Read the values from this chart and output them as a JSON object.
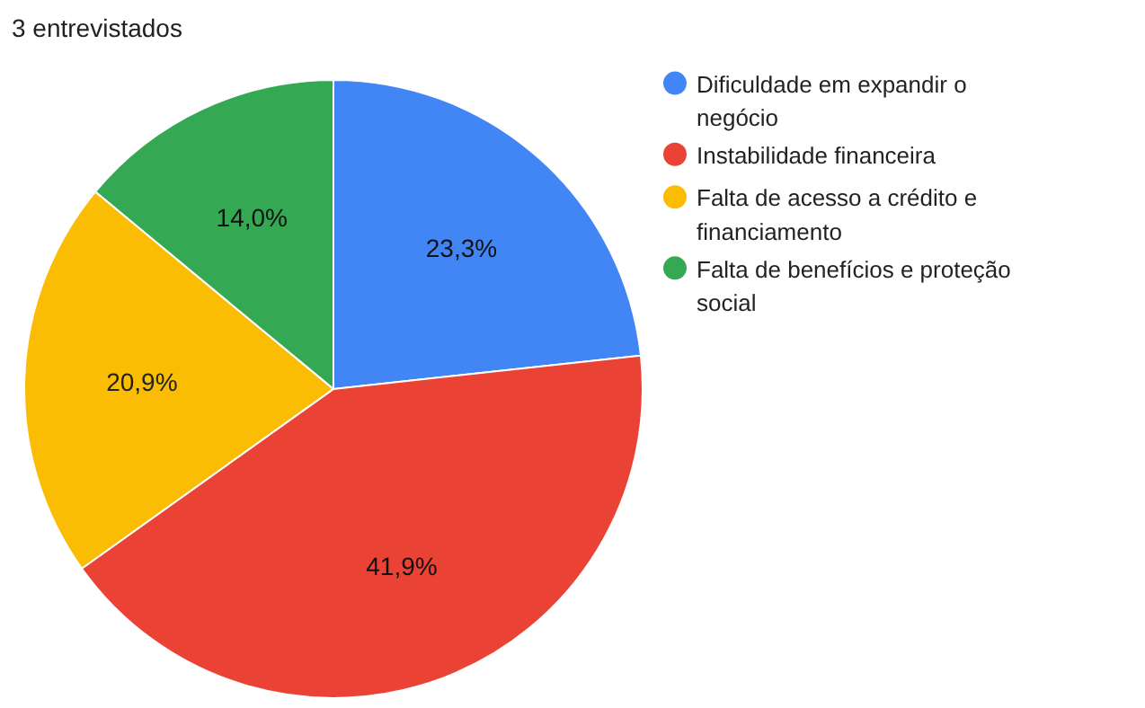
{
  "chart_data": {
    "type": "pie",
    "title": "3 entrevistados",
    "categories": [
      "Dificuldade em expandir o negócio",
      "Instabilidade financeira",
      "Falta de acesso a crédito e financiamento",
      "Falta de benefícios e proteção social"
    ],
    "values": [
      23.3,
      41.9,
      20.9,
      14.0
    ],
    "colors": [
      "#4285f4",
      "#ea4335",
      "#fbbc04",
      "#34a853"
    ],
    "value_labels": [
      "23,3%",
      "41,9%",
      "20,9%",
      "14,0%"
    ],
    "legend": "right"
  }
}
